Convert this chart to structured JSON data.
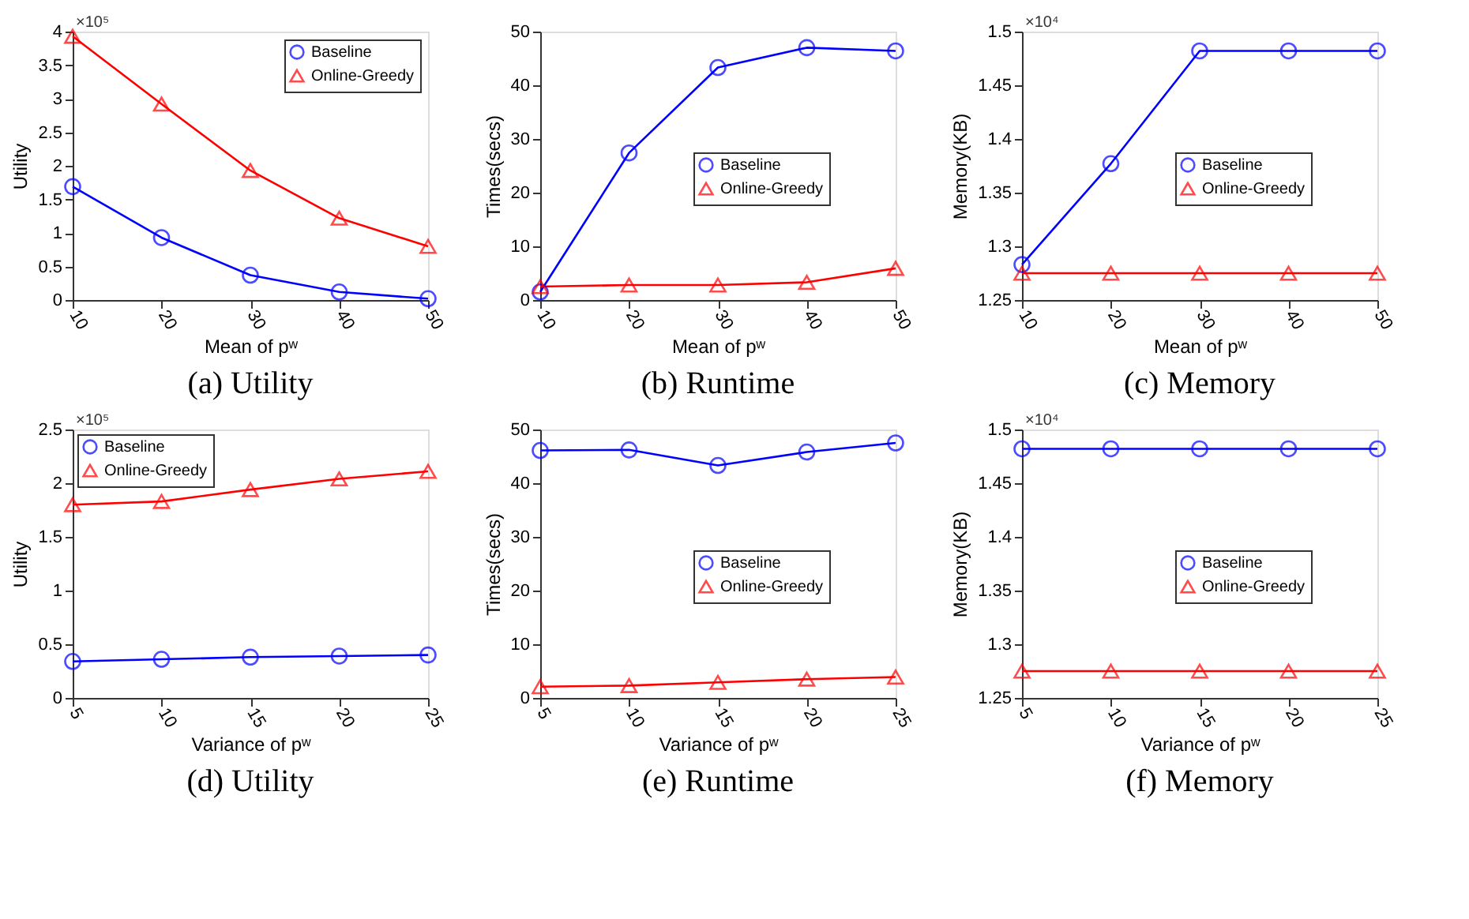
{
  "chart_data": [
    {
      "type": "line",
      "title": "(a) Utility",
      "xlabel": "Mean of pʷ",
      "ylabel": "Utility",
      "annotations": [
        "×10⁵"
      ],
      "legend": "top right",
      "x": [
        10,
        20,
        30,
        40,
        50
      ],
      "xlim": [
        10,
        50
      ],
      "xticks": [
        10,
        20,
        30,
        40,
        50
      ],
      "ylim": [
        0,
        4
      ],
      "yticks": [
        0,
        0.5,
        1,
        1.5,
        2,
        2.5,
        3,
        3.5,
        4
      ],
      "series": [
        {
          "name": "Baseline",
          "color": "#0000ff",
          "marker": "circle",
          "values": [
            1.69,
            0.93,
            0.37,
            0.12,
            0.02
          ]
        },
        {
          "name": "Online-Greedy",
          "color": "#ff0000",
          "marker": "triangle",
          "values": [
            3.93,
            2.92,
            1.93,
            1.22,
            0.8
          ]
        }
      ]
    },
    {
      "type": "line",
      "title": "(b) Runtime",
      "xlabel": "Mean of pʷ",
      "ylabel": "Times(secs)",
      "legend": "right",
      "x": [
        10,
        20,
        30,
        40,
        50
      ],
      "xlim": [
        10,
        50
      ],
      "xticks": [
        10,
        20,
        30,
        40,
        50
      ],
      "ylim": [
        0,
        50
      ],
      "yticks": [
        0,
        10,
        20,
        30,
        40,
        50
      ],
      "series": [
        {
          "name": "Baseline",
          "color": "#0000ff",
          "marker": "circle",
          "values": [
            1.5,
            27.4,
            43.3,
            47.0,
            46.4
          ]
        },
        {
          "name": "Online-Greedy",
          "color": "#ff0000",
          "marker": "triangle",
          "values": [
            2.5,
            2.8,
            2.8,
            3.3,
            5.9
          ]
        }
      ]
    },
    {
      "type": "line",
      "title": "(c) Memory",
      "xlabel": "Mean of pʷ",
      "ylabel": "Memory(KB)",
      "annotations": [
        "×10⁴"
      ],
      "legend": "right",
      "x": [
        10,
        20,
        30,
        40,
        50
      ],
      "xlim": [
        10,
        50
      ],
      "xticks": [
        10,
        20,
        30,
        40,
        50
      ],
      "ylim": [
        1.25,
        1.5
      ],
      "yticks": [
        1.25,
        1.3,
        1.35,
        1.4,
        1.45,
        1.5
      ],
      "series": [
        {
          "name": "Baseline",
          "color": "#0000ff",
          "marker": "circle",
          "values": [
            1.283,
            1.377,
            1.482,
            1.482,
            1.482
          ]
        },
        {
          "name": "Online-Greedy",
          "color": "#ff0000",
          "marker": "triangle",
          "values": [
            1.275,
            1.275,
            1.275,
            1.275,
            1.275
          ]
        }
      ]
    },
    {
      "type": "line",
      "title": "(d) Utility",
      "xlabel": "Variance of pʷ",
      "ylabel": "Utility",
      "annotations": [
        "×10⁵"
      ],
      "legend": "top left",
      "x": [
        5,
        10,
        15,
        20,
        25
      ],
      "xlim": [
        5,
        25
      ],
      "xticks": [
        5,
        10,
        15,
        20,
        25
      ],
      "ylim": [
        0,
        2.5
      ],
      "yticks": [
        0,
        0.5,
        1,
        1.5,
        2,
        2.5
      ],
      "series": [
        {
          "name": "Baseline",
          "color": "#0000ff",
          "marker": "circle",
          "values": [
            0.34,
            0.36,
            0.38,
            0.39,
            0.4
          ]
        },
        {
          "name": "Online-Greedy",
          "color": "#ff0000",
          "marker": "triangle",
          "values": [
            1.8,
            1.83,
            1.94,
            2.04,
            2.11
          ]
        }
      ]
    },
    {
      "type": "line",
      "title": "(e) Runtime",
      "xlabel": "Variance of pʷ",
      "ylabel": "Times(secs)",
      "legend": "right",
      "x": [
        5,
        10,
        15,
        20,
        25
      ],
      "xlim": [
        5,
        25
      ],
      "xticks": [
        5,
        10,
        15,
        20,
        25
      ],
      "ylim": [
        0,
        50
      ],
      "yticks": [
        0,
        10,
        20,
        30,
        40,
        50
      ],
      "series": [
        {
          "name": "Baseline",
          "color": "#0000ff",
          "marker": "circle",
          "values": [
            46.1,
            46.2,
            43.3,
            45.8,
            47.5
          ]
        },
        {
          "name": "Online-Greedy",
          "color": "#ff0000",
          "marker": "triangle",
          "values": [
            2.1,
            2.3,
            2.9,
            3.5,
            3.9
          ]
        }
      ]
    },
    {
      "type": "line",
      "title": "(f) Memory",
      "xlabel": "Variance of pʷ",
      "ylabel": "Memory(KB)",
      "annotations": [
        "×10⁴"
      ],
      "legend": "right",
      "x": [
        5,
        10,
        15,
        20,
        25
      ],
      "xlim": [
        5,
        25
      ],
      "xticks": [
        5,
        10,
        15,
        20,
        25
      ],
      "ylim": [
        1.25,
        1.5
      ],
      "yticks": [
        1.25,
        1.3,
        1.35,
        1.4,
        1.45,
        1.5
      ],
      "series": [
        {
          "name": "Baseline",
          "color": "#0000ff",
          "marker": "circle",
          "values": [
            1.482,
            1.482,
            1.482,
            1.482,
            1.482
          ]
        },
        {
          "name": "Online-Greedy",
          "color": "#ff0000",
          "marker": "triangle",
          "values": [
            1.275,
            1.275,
            1.275,
            1.275,
            1.275
          ]
        }
      ]
    }
  ]
}
